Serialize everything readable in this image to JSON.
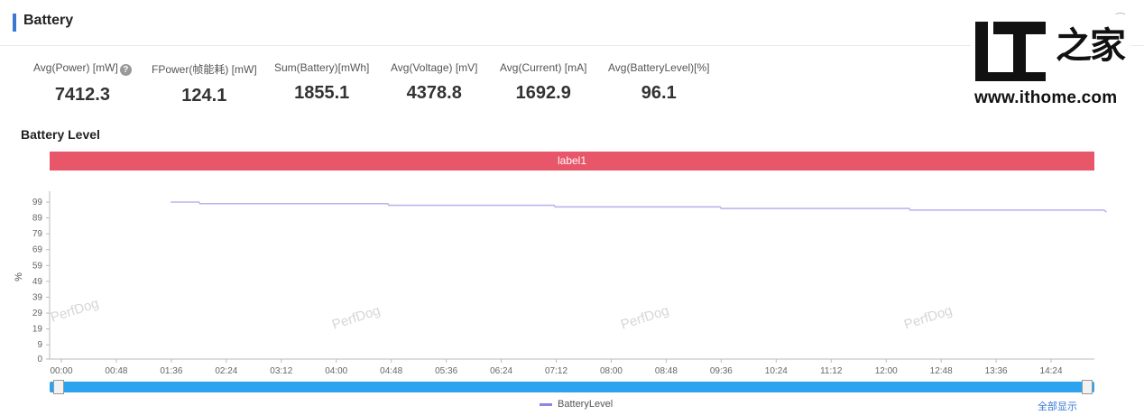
{
  "panel": {
    "title": "Battery"
  },
  "metrics": [
    {
      "label": "Avg(Power) [mW]",
      "value": "7412.3",
      "help": true
    },
    {
      "label": "FPower(帧能耗) [mW]",
      "value": "124.1"
    },
    {
      "label": "Sum(Battery)[mWh]",
      "value": "1855.1"
    },
    {
      "label": "Avg(Voltage) [mV]",
      "value": "4378.8"
    },
    {
      "label": "Avg(Current) [mA]",
      "value": "1692.9"
    },
    {
      "label": "Avg(BatteryLevel)[%]",
      "value": "96.1"
    }
  ],
  "section": {
    "title": "Battery Level"
  },
  "label_band": {
    "text": "label1"
  },
  "logo": {
    "mark": "IT",
    "chinese": "之家",
    "url": "www.ithome.com"
  },
  "watermark": "PerfDog",
  "legend": {
    "label": "BatteryLevel",
    "color": "#8f87e0"
  },
  "corner_link": "全部显示",
  "chart_data": {
    "type": "line",
    "title": "Battery Level",
    "ylabel": "%",
    "xlabel": "",
    "ylim": [
      0,
      99
    ],
    "yticks": [
      0,
      9,
      19,
      29,
      39,
      49,
      59,
      69,
      79,
      89,
      99
    ],
    "xticks": [
      "00:00",
      "00:48",
      "01:36",
      "02:24",
      "03:12",
      "04:00",
      "04:48",
      "05:36",
      "06:24",
      "07:12",
      "08:00",
      "08:48",
      "09:36",
      "10:24",
      "11:12",
      "12:00",
      "12:48",
      "13:36",
      "14:24"
    ],
    "xlim_minutes": [
      0,
      912
    ],
    "grid": false,
    "legend_position": "bottom",
    "series": [
      {
        "name": "BatteryLevel",
        "color": "#b9b6ee",
        "points": [
          {
            "t": "01:36",
            "value": 99
          },
          {
            "t": "02:00",
            "value": 99
          },
          {
            "t": "02:01",
            "value": 98
          },
          {
            "t": "04:45",
            "value": 98
          },
          {
            "t": "04:46",
            "value": 97
          },
          {
            "t": "07:10",
            "value": 97
          },
          {
            "t": "07:11",
            "value": 96
          },
          {
            "t": "09:35",
            "value": 96
          },
          {
            "t": "09:36",
            "value": 95
          },
          {
            "t": "12:20",
            "value": 95
          },
          {
            "t": "12:21",
            "value": 94
          },
          {
            "t": "15:10",
            "value": 94
          },
          {
            "t": "15:12",
            "value": 93
          }
        ]
      }
    ]
  }
}
